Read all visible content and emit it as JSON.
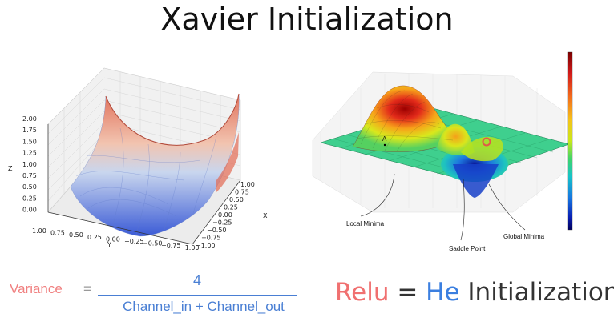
{
  "title": "Xavier Initialization",
  "left_plot": {
    "z_label": "Z",
    "y_label": "Y",
    "x_label": "X",
    "z_ticks": [
      "2.00",
      "1.75",
      "1.50",
      "1.25",
      "1.00",
      "0.75",
      "0.50",
      "0.25",
      "0.00"
    ],
    "y_ticks": [
      "1.00",
      "0.75",
      "0.50",
      "0.25",
      "0.00",
      "−0.25",
      "−0.50",
      "−0.75",
      "−1.00"
    ],
    "x_ticks": [
      "1.00",
      "0.75",
      "0.50",
      "0.25",
      "0.00",
      "−0.25",
      "−0.50",
      "−0.75",
      "−1.00"
    ]
  },
  "right_plot": {
    "point_label": "A",
    "annotations": {
      "local_minima": "Local Minima",
      "saddle_point": "Saddle Point",
      "global_minima": "Global Minima"
    },
    "colorbar": [
      "#7a0000",
      "#d11a1a",
      "#f26b1d",
      "#f5c21a",
      "#c8e81a",
      "#3fd46a",
      "#17c3c9",
      "#1776e0",
      "#0a1fb3",
      "#00005c"
    ]
  },
  "equation": {
    "label": "Variance",
    "equals": "=",
    "numerator": "4",
    "denominator": "Channel_in + Channel_out"
  },
  "relu_statement": {
    "relu": "Relu",
    "equals": " = ",
    "he": "He",
    "rest": " Initialization"
  },
  "colors": {
    "variance": "#f08080",
    "fraction": "#4a7fd4",
    "relu": "#f07070",
    "he": "#3b7fe0"
  }
}
